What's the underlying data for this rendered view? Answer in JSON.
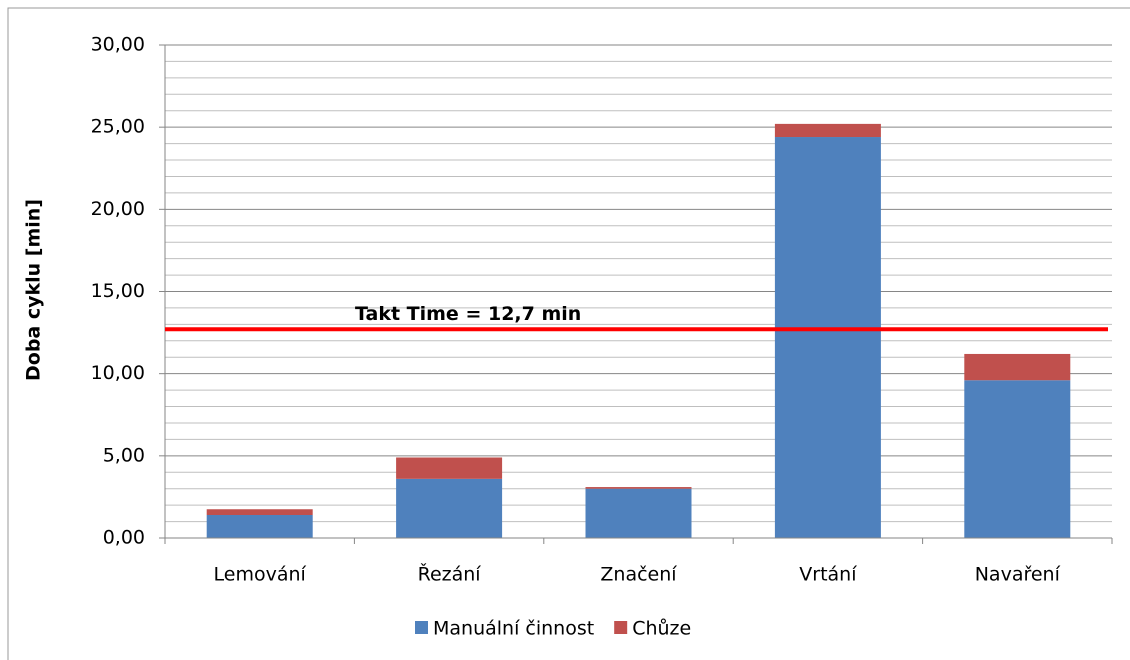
{
  "chart_data": {
    "type": "bar",
    "stacked": true,
    "y_label": "Doba cyklu [min]",
    "categories": [
      "Lemování",
      "Řezání",
      "Značení",
      "Vrtání",
      "Navaření"
    ],
    "series": [
      {
        "name": "Manuální činnost",
        "color": "#4f81bd",
        "values": [
          1.4,
          3.6,
          3.0,
          24.4,
          9.6
        ]
      },
      {
        "name": "Chůze",
        "color": "#c0504d",
        "values": [
          0.35,
          1.3,
          0.1,
          0.8,
          1.6
        ]
      }
    ],
    "ylim": [
      0,
      30
    ],
    "yticks": [
      {
        "value": 0,
        "label": "0,00"
      },
      {
        "value": 5,
        "label": "5,00"
      },
      {
        "value": 10,
        "label": "10,00"
      },
      {
        "value": 15,
        "label": "15,00"
      },
      {
        "value": 20,
        "label": "20,00"
      },
      {
        "value": 25,
        "label": "25,00"
      },
      {
        "value": 30,
        "label": "30,00"
      }
    ],
    "yminorticks": [
      1,
      2,
      3,
      4,
      6,
      7,
      8,
      9,
      11,
      12,
      13,
      14,
      16,
      17,
      18,
      19,
      21,
      22,
      23,
      24,
      26,
      27,
      28,
      29
    ],
    "grid": true,
    "legend": "bottom",
    "annotations": [
      {
        "text": "Takt Time = 12,7 min",
        "value": 12.7,
        "color": "#ff0000"
      }
    ]
  }
}
